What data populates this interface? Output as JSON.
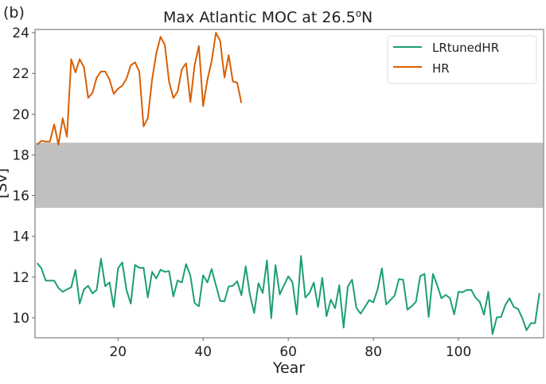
{
  "chart_data": {
    "type": "line",
    "panel_label": "(b)",
    "title": "Max Atlantic MOC at 26.5",
    "title_superscript": "o",
    "title_suffix": "N",
    "xlabel": "Year",
    "ylabel": "[Sv]",
    "xlim": [
      0.5,
      120
    ],
    "ylim": [
      9.02,
      24.16
    ],
    "xticks": [
      20,
      40,
      60,
      80,
      100
    ],
    "yticks": [
      10,
      12,
      14,
      16,
      18,
      20,
      22,
      24
    ],
    "grid": false,
    "legend_position": "top-right",
    "shaded_band": {
      "ymin": 15.4,
      "ymax": 18.6,
      "color": "#c0c0c0"
    },
    "series": [
      {
        "name": "LRtunedHR",
        "color": "#1b9e77",
        "x_start": 1,
        "values": [
          12.69,
          12.43,
          11.83,
          11.83,
          11.83,
          11.47,
          11.28,
          11.4,
          11.5,
          12.35,
          10.7,
          11.4,
          11.57,
          11.2,
          11.37,
          12.9,
          11.55,
          11.74,
          10.53,
          12.43,
          12.72,
          11.35,
          10.7,
          12.6,
          12.45,
          12.46,
          11.0,
          12.26,
          11.93,
          12.36,
          12.26,
          12.3,
          11.05,
          11.83,
          11.74,
          12.64,
          12.07,
          10.72,
          10.57,
          12.09,
          11.74,
          12.4,
          11.6,
          10.83,
          10.81,
          11.54,
          11.57,
          11.8,
          11.11,
          12.53,
          11.13,
          10.24,
          11.7,
          11.22,
          12.82,
          9.98,
          12.59,
          11.15,
          11.6,
          12.04,
          11.74,
          10.17,
          13.04,
          11.0,
          11.22,
          11.73,
          10.53,
          11.96,
          10.08,
          10.89,
          10.47,
          11.6,
          9.52,
          11.54,
          11.87,
          10.5,
          10.2,
          10.53,
          10.87,
          10.76,
          11.41,
          12.43,
          10.66,
          10.87,
          11.09,
          11.9,
          11.87,
          10.4,
          10.57,
          10.79,
          12.04,
          12.16,
          10.04,
          12.16,
          11.6,
          10.96,
          11.13,
          10.96,
          10.17,
          11.28,
          11.26,
          11.37,
          11.37,
          11.0,
          10.79,
          10.16,
          11.28,
          9.2,
          10.02,
          10.04,
          10.63,
          10.96,
          10.53,
          10.44,
          9.98,
          9.39,
          9.74,
          9.74,
          11.22
        ]
      },
      {
        "name": "HR",
        "color": "#d95f02",
        "x_start": 1,
        "values": [
          18.5,
          18.7,
          18.65,
          18.65,
          19.5,
          18.5,
          19.8,
          18.9,
          22.7,
          22.05,
          22.7,
          22.3,
          20.8,
          21.05,
          21.8,
          22.1,
          22.1,
          21.7,
          21.0,
          21.25,
          21.4,
          21.75,
          22.4,
          22.55,
          22.1,
          19.4,
          19.8,
          21.7,
          23.0,
          23.8,
          23.4,
          21.6,
          20.8,
          21.1,
          22.2,
          22.5,
          20.6,
          22.4,
          23.35,
          20.4,
          21.7,
          22.6,
          24.0,
          23.6,
          21.8,
          22.9,
          21.6,
          21.55,
          20.55
        ]
      }
    ]
  }
}
